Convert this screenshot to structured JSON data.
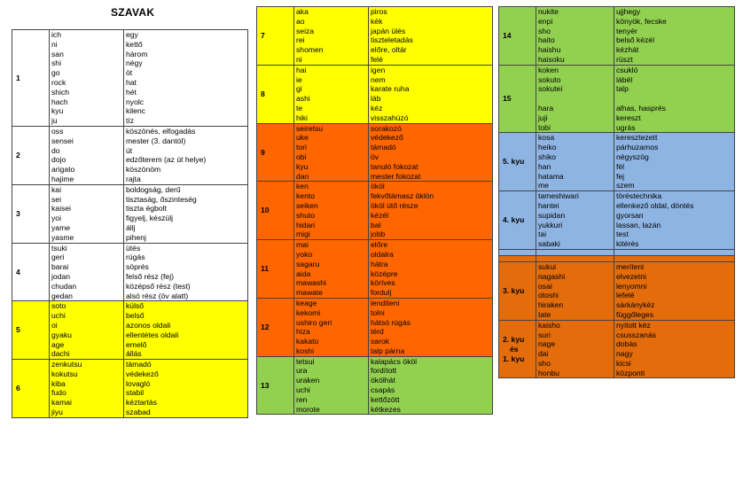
{
  "title": "SZAVAK",
  "col1": [
    {
      "num": "1",
      "color": "white",
      "words": [
        [
          "ich",
          "egy"
        ],
        [
          "ni",
          "kettő"
        ],
        [
          "san",
          "három"
        ],
        [
          "shi",
          "négy"
        ],
        [
          "go",
          "öt"
        ],
        [
          "rock",
          "hat"
        ],
        [
          "shich",
          "hét"
        ],
        [
          "hach",
          "nyolc"
        ],
        [
          "kyu",
          "kilenc"
        ],
        [
          "ju",
          "tíz"
        ]
      ]
    },
    {
      "num": "2",
      "color": "white",
      "words": [
        [
          "oss",
          "köszönés, elfogadás"
        ],
        [
          "sensei",
          "mester (3. dantól)"
        ],
        [
          "do",
          "út"
        ],
        [
          "dojo",
          "edzőterem (az út helye)"
        ],
        [
          "arigato",
          "köszönöm"
        ],
        [
          "hajime",
          "rajta"
        ]
      ]
    },
    {
      "num": "3",
      "color": "white",
      "words": [
        [
          "kai",
          "boldogság, derű"
        ],
        [
          "sei",
          "tisztaság, őszinteség"
        ],
        [
          "kaisei",
          "tiszta égbolt"
        ],
        [
          "yoi",
          "figyelj, készülj"
        ],
        [
          "yame",
          "állj"
        ],
        [
          "yasme",
          "pihenj"
        ]
      ]
    },
    {
      "num": "4",
      "color": "white",
      "words": [
        [
          "tsuki",
          "ütés"
        ],
        [
          "geri",
          "rúgás"
        ],
        [
          "barai",
          "söprés"
        ],
        [
          "jodan",
          "felső rész (fej)"
        ],
        [
          "chudan",
          "középső rész (test)"
        ],
        [
          "gedan",
          "alsó rész (öv alatt)"
        ]
      ]
    },
    {
      "num": "5",
      "color": "yellow",
      "words": [
        [
          "soto",
          "külső"
        ],
        [
          "uchi",
          "belső"
        ],
        [
          "oi",
          "azonos oldali"
        ],
        [
          "gyaku",
          "ellentétes oldali"
        ],
        [
          "age",
          "emelő"
        ],
        [
          "dachi",
          "állás"
        ]
      ]
    },
    {
      "num": "6",
      "color": "yellow",
      "words": [
        [
          "zenkutsu",
          "támadó"
        ],
        [
          "kokutsu",
          "védekező"
        ],
        [
          "kiba",
          "lovagló"
        ],
        [
          "fudo",
          "stabil"
        ],
        [
          "kamai",
          "kéztartás"
        ],
        [
          "jiyu",
          "szabad"
        ]
      ]
    }
  ],
  "col2": [
    {
      "num": "7",
      "color": "yellow",
      "words": [
        [
          "aka",
          "piros"
        ],
        [
          "ao",
          "kék"
        ],
        [
          "seiza",
          "japán ülés"
        ],
        [
          "rei",
          "tiszteletadás"
        ],
        [
          "shomen",
          "előre, oltár"
        ],
        [
          "ni",
          "felé"
        ]
      ]
    },
    {
      "num": "8",
      "color": "yellow",
      "words": [
        [
          "hai",
          "igen"
        ],
        [
          "ie",
          "nem"
        ],
        [
          "gi",
          "karate ruha"
        ],
        [
          "ashi",
          "láb"
        ],
        [
          "te",
          "kéz"
        ],
        [
          "hiki",
          "visszahúzó"
        ]
      ]
    },
    {
      "num": "9",
      "color": "orange",
      "words": [
        [
          "seiretsu",
          "sorakozó"
        ],
        [
          "uke",
          "védekező"
        ],
        [
          "tori",
          "támadó"
        ],
        [
          "obi",
          "öv"
        ],
        [
          "kyu",
          "tanuló fokozat"
        ],
        [
          "dan",
          "mester fokozat"
        ]
      ]
    },
    {
      "num": "10",
      "color": "orange",
      "words": [
        [
          "ken",
          "ököl"
        ],
        [
          "kento",
          "fekvőtámasz öklön"
        ],
        [
          "seiken",
          "ököl ütő része"
        ],
        [
          "shuto",
          "kézél"
        ],
        [
          "hidari",
          "bal"
        ],
        [
          "migi",
          "jobb"
        ]
      ]
    },
    {
      "num": "11",
      "color": "orange",
      "words": [
        [
          "mai",
          "előre"
        ],
        [
          "yoko",
          "oldalra"
        ],
        [
          "sagaru",
          "hátra"
        ],
        [
          "aida",
          "középre"
        ],
        [
          "mawashi",
          "köríves"
        ],
        [
          "mawate",
          "fordulj"
        ]
      ]
    },
    {
      "num": "12",
      "color": "orange",
      "words": [
        [
          "keage",
          "lendíteni"
        ],
        [
          "kekomi",
          "tolni"
        ],
        [
          "ushiro geri",
          "hátsó rúgás"
        ],
        [
          "hiza",
          "térd"
        ],
        [
          "kakato",
          "sarok"
        ],
        [
          "koshi",
          "talp párna"
        ]
      ]
    },
    {
      "num": "13",
      "color": "green",
      "words": [
        [
          "tetsui",
          "kalapács ököl"
        ],
        [
          "ura",
          "fordított"
        ],
        [
          "uraken",
          "ökölhát"
        ],
        [
          "uchi",
          "csapás"
        ],
        [
          "ren",
          "kettőzött"
        ],
        [
          "morote",
          "kétkezes"
        ]
      ]
    }
  ],
  "col3": [
    {
      "num": "14",
      "color": "green",
      "words": [
        [
          "nukite",
          "ujjhegy"
        ],
        [
          "enpi",
          "könyök, fecske"
        ],
        [
          "sho",
          "tenyér"
        ],
        [
          "haito",
          "belső kézél"
        ],
        [
          "haishu",
          "kézhát"
        ],
        [
          "haisoku",
          "rüszt"
        ]
      ]
    },
    {
      "num": "15",
      "color": "green",
      "words": [
        [
          "koken",
          "csukló"
        ],
        [
          "sokuto",
          "lábél"
        ],
        [
          "sokutei",
          "talp"
        ],
        [
          "",
          ""
        ],
        [
          "hara",
          "alhas, hasprés"
        ],
        [
          "juji",
          "kereszt"
        ],
        [
          "tobi",
          "ugrás"
        ]
      ]
    },
    {
      "num": "5. kyu",
      "color": "blue",
      "words": [
        [
          "kosa",
          "keresztezett"
        ],
        [
          "heiko",
          "párhuzamos"
        ],
        [
          "shiko",
          "négyszög"
        ],
        [
          "han",
          "fél"
        ],
        [
          "hatama",
          "fej"
        ],
        [
          "me",
          "szem"
        ]
      ]
    },
    {
      "num": "4. kyu",
      "color": "blue",
      "words": [
        [
          "tameshiwari",
          "töréstechnika"
        ],
        [
          "hantei",
          "ellenkező oldal, döntés"
        ],
        [
          "supidan",
          "gyorsan"
        ],
        [
          "yukkuri",
          "lassan, lazán"
        ],
        [
          "tai",
          "test"
        ],
        [
          "sabaki",
          "kitérés"
        ]
      ]
    },
    {
      "num": "",
      "color": "blue",
      "gap": true,
      "words": []
    },
    {
      "num": "",
      "color": "dkorange",
      "gap": true,
      "words": []
    },
    {
      "num": "3. kyu",
      "color": "dkorange",
      "words": [
        [
          "sukui",
          "meríteni"
        ],
        [
          "nagashi",
          "elvezetni"
        ],
        [
          "osai",
          "lenyomni"
        ],
        [
          "otoshi",
          "lefelé"
        ],
        [
          "hiraken",
          "sárkánykéz"
        ],
        [
          "tate",
          "függőleges"
        ]
      ]
    },
    {
      "num": "2. kyu\nés\n1. kyu",
      "color": "dkorange",
      "words": [
        [
          "kaisho",
          "nyitott kéz"
        ],
        [
          "suri",
          "csusszanás"
        ],
        [
          "nage",
          "dobás"
        ],
        [
          "dai",
          "nagy"
        ],
        [
          "sho",
          "kicsi"
        ],
        [
          "honbu",
          "központi"
        ]
      ]
    }
  ]
}
